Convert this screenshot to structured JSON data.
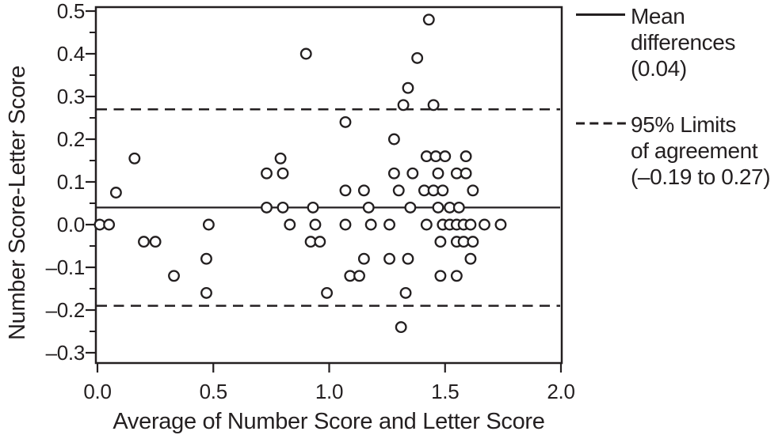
{
  "colors": {
    "ink": "#231f20",
    "background": "#ffffff"
  },
  "legend": {
    "mean": {
      "line1": "Mean",
      "line2": "differences",
      "line3": "(0.04)"
    },
    "limits": {
      "line1": "95% Limits",
      "line2": "of agreement",
      "line3": "(–0.19 to 0.27)"
    }
  },
  "chart_data": {
    "type": "scatter",
    "title": "",
    "xlabel": "Average of Number Score and Letter Score",
    "ylabel": "Number Score-Letter Score",
    "xlim": [
      0.0,
      2.0
    ],
    "ylim": [
      -0.3,
      0.5
    ],
    "grid": false,
    "legend_position": "right",
    "x_ticks": [
      0.0,
      0.5,
      1.0,
      1.5,
      2.0
    ],
    "x_tick_labels": [
      "0.0",
      "0.5",
      "1.0",
      "1.5",
      "2.0"
    ],
    "y_ticks": [
      0.5,
      0.4,
      0.3,
      0.2,
      0.1,
      0.0,
      -0.1,
      -0.2,
      -0.3
    ],
    "y_tick_labels": [
      "0.5",
      "0.4",
      "0.3",
      "0.2",
      "0.1",
      "0.0",
      "–0.1",
      "–0.2",
      "–0.3"
    ],
    "y_minor_ticks": [
      0.45,
      0.35,
      0.25,
      0.15,
      0.05,
      -0.05,
      -0.15,
      -0.25
    ],
    "mean_line": {
      "style": "solid",
      "value": 0.04,
      "label": "Mean differences (0.04)"
    },
    "limit_lines": {
      "style": "dashed",
      "values": [
        0.27,
        -0.19
      ],
      "label": "95% Limits of agreement (–0.19 to 0.27)"
    },
    "marker": {
      "shape": "open-circle",
      "radius_px": 6.3
    },
    "points": [
      [
        1.43,
        0.48
      ],
      [
        0.9,
        0.4
      ],
      [
        1.38,
        0.39
      ],
      [
        1.34,
        0.32
      ],
      [
        1.32,
        0.28
      ],
      [
        1.45,
        0.28
      ],
      [
        1.07,
        0.24
      ],
      [
        1.28,
        0.2
      ],
      [
        0.16,
        0.155
      ],
      [
        0.79,
        0.155
      ],
      [
        1.42,
        0.16
      ],
      [
        1.46,
        0.16
      ],
      [
        1.5,
        0.16
      ],
      [
        1.59,
        0.16
      ],
      [
        0.73,
        0.12
      ],
      [
        0.8,
        0.12
      ],
      [
        1.28,
        0.12
      ],
      [
        1.36,
        0.12
      ],
      [
        1.47,
        0.12
      ],
      [
        1.55,
        0.12
      ],
      [
        1.59,
        0.12
      ],
      [
        0.08,
        0.075
      ],
      [
        1.07,
        0.08
      ],
      [
        1.15,
        0.08
      ],
      [
        1.3,
        0.08
      ],
      [
        1.41,
        0.08
      ],
      [
        1.45,
        0.08
      ],
      [
        1.49,
        0.08
      ],
      [
        1.62,
        0.08
      ],
      [
        0.73,
        0.04
      ],
      [
        0.8,
        0.04
      ],
      [
        0.93,
        0.04
      ],
      [
        1.17,
        0.04
      ],
      [
        1.35,
        0.04
      ],
      [
        1.47,
        0.04
      ],
      [
        1.52,
        0.04
      ],
      [
        1.56,
        0.04
      ],
      [
        0.01,
        0.0
      ],
      [
        0.05,
        0.0
      ],
      [
        0.48,
        0.0
      ],
      [
        0.83,
        0.0
      ],
      [
        0.94,
        0.0
      ],
      [
        1.07,
        0.0
      ],
      [
        1.18,
        0.0
      ],
      [
        1.26,
        0.0
      ],
      [
        1.42,
        0.0
      ],
      [
        1.49,
        0.0
      ],
      [
        1.52,
        0.0
      ],
      [
        1.55,
        0.0
      ],
      [
        1.58,
        0.0
      ],
      [
        1.61,
        0.0
      ],
      [
        1.67,
        0.0
      ],
      [
        1.74,
        0.0
      ],
      [
        0.2,
        -0.04
      ],
      [
        0.25,
        -0.04
      ],
      [
        0.92,
        -0.04
      ],
      [
        0.96,
        -0.04
      ],
      [
        1.48,
        -0.04
      ],
      [
        1.55,
        -0.04
      ],
      [
        1.58,
        -0.04
      ],
      [
        1.62,
        -0.04
      ],
      [
        0.47,
        -0.08
      ],
      [
        1.15,
        -0.08
      ],
      [
        1.26,
        -0.08
      ],
      [
        1.34,
        -0.08
      ],
      [
        1.61,
        -0.08
      ],
      [
        0.33,
        -0.12
      ],
      [
        1.09,
        -0.12
      ],
      [
        1.13,
        -0.12
      ],
      [
        1.48,
        -0.12
      ],
      [
        1.55,
        -0.12
      ],
      [
        0.47,
        -0.16
      ],
      [
        0.99,
        -0.16
      ],
      [
        1.33,
        -0.16
      ],
      [
        1.31,
        -0.24
      ]
    ]
  }
}
